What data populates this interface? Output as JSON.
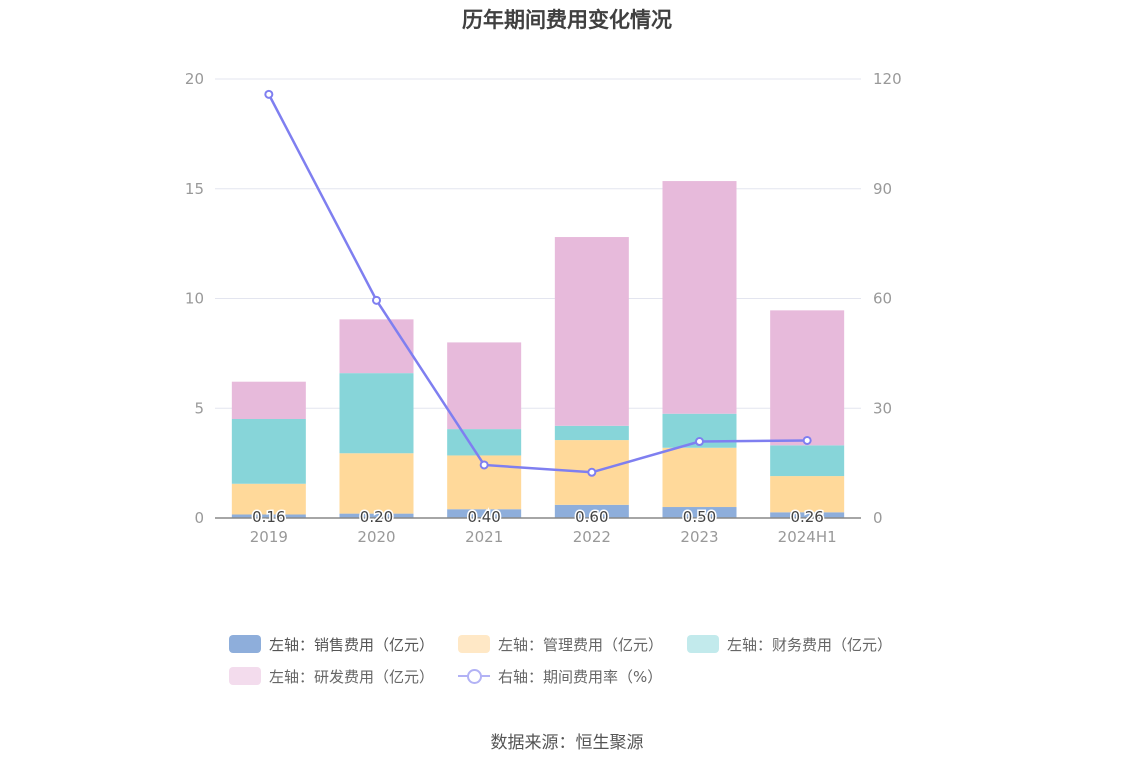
{
  "title": "历年期间费用变化情况",
  "source": "数据来源：恒生聚源",
  "chart_data": {
    "type": "bar",
    "stacked": true,
    "categories": [
      "2019",
      "2020",
      "2021",
      "2022",
      "2023",
      "2024H1"
    ],
    "left_axis": {
      "min": 0,
      "max": 20,
      "ticks": [
        "0",
        "5",
        "10",
        "15",
        "20"
      ]
    },
    "right_axis": {
      "min": 0,
      "max": 120,
      "ticks": [
        "0",
        "30",
        "60",
        "90",
        "120"
      ]
    },
    "grid": true,
    "legend_position": "bottom",
    "series": [
      {
        "name": "左轴：销售费用（亿元）",
        "values": [
          0.16,
          0.2,
          0.4,
          0.6,
          0.5,
          0.26
        ],
        "labels": [
          "0.16",
          "0.20",
          "0.40",
          "0.60",
          "0.50",
          "0.26"
        ],
        "color": "#8eaedb",
        "legend_color": "#8eaedb"
      },
      {
        "name": "左轴：管理费用（亿元）",
        "values": [
          1.4,
          2.75,
          2.45,
          2.95,
          2.7,
          1.65
        ],
        "color": "#ffd99a",
        "legend_color": "#ffe8c6"
      },
      {
        "name": "左轴：财务费用（亿元）",
        "values": [
          2.95,
          3.65,
          1.2,
          0.65,
          1.55,
          1.4
        ],
        "color": "#87d5d9",
        "legend_color": "#c2eaec"
      },
      {
        "name": "左轴：研发费用（亿元）",
        "values": [
          1.7,
          2.45,
          3.95,
          8.6,
          10.6,
          6.15
        ],
        "color": "#e7badb",
        "legend_color": "#f3dced"
      },
      {
        "name": "右轴：期间费用率（%）",
        "type": "line",
        "axis": "right",
        "values": [
          115.8,
          59.5,
          14.5,
          12.5,
          20.9,
          21.2
        ],
        "color": "#7f7ff0"
      }
    ]
  }
}
